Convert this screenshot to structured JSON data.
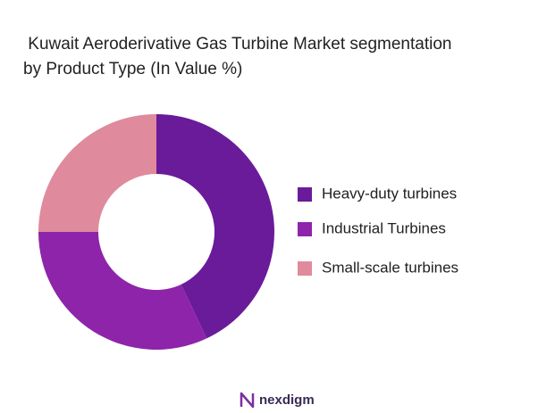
{
  "chart_data": {
    "type": "donut",
    "title_lines": [
      " Kuwait Aeroderivative Gas Turbine Market segmentation",
      "by Product Type (In Value %)"
    ],
    "categories": [
      "Heavy-duty turbines",
      "Industrial Turbines",
      "Small-scale turbines"
    ],
    "values": [
      43,
      32,
      25
    ],
    "colors": [
      "#6a1b9a",
      "#8e24aa",
      "#df8a9d"
    ],
    "legend": "right"
  },
  "brand": "nexdigm"
}
